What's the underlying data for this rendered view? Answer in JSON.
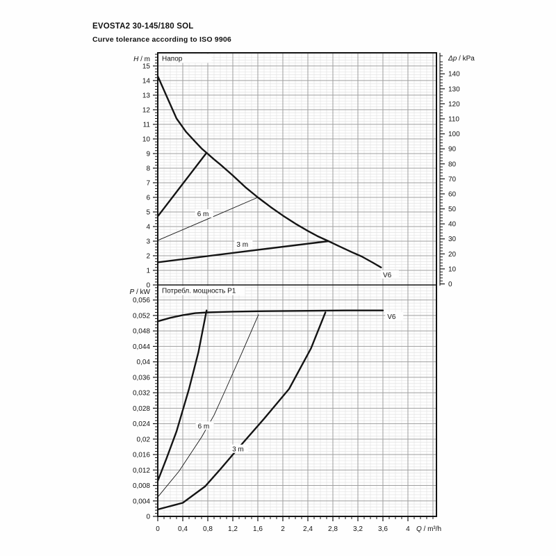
{
  "page": {
    "title": "EVOSTA2 30-145/180 SOL",
    "subtitle": "Curve tolerance according to ISO 9906"
  },
  "colors": {
    "curve": "#141414",
    "frame": "#141414",
    "grid_major": "#9e9e9e",
    "grid_minor": "#e4e4e4",
    "text": "#111111",
    "background": "#fefefe"
  },
  "chart_data": [
    {
      "id": "head",
      "type": "line",
      "title": "Напор",
      "y_axis_left": {
        "title": "H / m",
        "tick_labels": [
          "0",
          "1",
          "2",
          "3",
          "4",
          "5",
          "6",
          "7",
          "8",
          "9",
          "10",
          "11",
          "12",
          "13",
          "14",
          "15"
        ],
        "tick_values": [
          0,
          1,
          2,
          3,
          4,
          5,
          6,
          7,
          8,
          9,
          10,
          11,
          12,
          13,
          14,
          15
        ],
        "minor_step": 0.2,
        "range": [
          0,
          15.9
        ]
      },
      "y_axis_right": {
        "title": "Δp / kPa",
        "tick_labels": [
          "0",
          "10",
          "20",
          "30",
          "40",
          "50",
          "60",
          "70",
          "80",
          "90",
          "100",
          "110",
          "120",
          "130",
          "140"
        ],
        "tick_values": [
          0,
          10,
          20,
          30,
          40,
          50,
          60,
          70,
          80,
          90,
          100,
          110,
          120,
          130,
          140
        ],
        "minor_step": 2,
        "range": [
          0,
          154
        ]
      },
      "x_range": [
        0,
        4.456
      ],
      "grid": true,
      "series": [
        {
          "name": "max-speed-head-curve",
          "label": "V6",
          "label_at": [
            3.6,
            0.72
          ],
          "weight": "thick",
          "points": [
            [
              0,
              14.3
            ],
            [
              0.15,
              12.85
            ],
            [
              0.3,
              11.4
            ],
            [
              0.45,
              10.5
            ],
            [
              0.6,
              9.8
            ],
            [
              0.7,
              9.35
            ],
            [
              0.78,
              9.05
            ],
            [
              0.9,
              8.6
            ],
            [
              1.0,
              8.25
            ],
            [
              1.2,
              7.5
            ],
            [
              1.4,
              6.7
            ],
            [
              1.6,
              6.0
            ],
            [
              1.8,
              5.35
            ],
            [
              2.0,
              4.75
            ],
            [
              2.2,
              4.2
            ],
            [
              2.4,
              3.7
            ],
            [
              2.55,
              3.35
            ],
            [
              2.73,
              3.0
            ],
            [
              2.9,
              2.65
            ],
            [
              3.1,
              2.25
            ],
            [
              3.26,
              1.95
            ],
            [
              3.45,
              1.5
            ],
            [
              3.57,
              1.2
            ]
          ]
        },
        {
          "name": "proportional-pressure-max-line",
          "label": "",
          "weight": "thick",
          "points": [
            [
              0,
              4.7
            ],
            [
              0.78,
              9.05
            ]
          ]
        },
        {
          "name": "setpoint-6m-head-line",
          "label": "6 m",
          "label_at": [
            0.63,
            4.9
          ],
          "weight": "thin",
          "points": [
            [
              0,
              3.05
            ],
            [
              0.8,
              4.52
            ],
            [
              1.6,
              6.0
            ]
          ]
        },
        {
          "name": "setpoint-3m-head-line",
          "label": "3 m",
          "label_at": [
            1.26,
            2.8
          ],
          "weight": "thick",
          "points": [
            [
              0,
              1.55
            ],
            [
              1.4,
              2.3
            ],
            [
              2.73,
              3.0
            ]
          ]
        }
      ]
    },
    {
      "id": "power",
      "type": "line",
      "title": "Потребл. мощность P1",
      "y_axis_left": {
        "title": "P / kW",
        "tick_labels": [
          "0",
          "0,004",
          "0,008",
          "0,012",
          "0,016",
          "0,02",
          "0,024",
          "0,028",
          "0,032",
          "0,036",
          "0,04",
          "0,044",
          "0,048",
          "0,052",
          "0,056"
        ],
        "tick_values": [
          0,
          0.004,
          0.008,
          0.012,
          0.016,
          0.02,
          0.024,
          0.028,
          0.032,
          0.036,
          0.04,
          0.044,
          0.048,
          0.052,
          0.056
        ],
        "minor_step": 0.0008,
        "range": [
          0,
          0.0599
        ]
      },
      "x_axis": {
        "title": "Q / m³/h",
        "tick_labels": [
          "0",
          "0,4",
          "0,8",
          "1,2",
          "1,6",
          "2",
          "2,4",
          "2,8",
          "3,2",
          "3,6",
          "4"
        ],
        "tick_values": [
          0,
          0.4,
          0.8,
          1.2,
          1.6,
          2,
          2.4,
          2.8,
          3.2,
          3.6,
          4
        ],
        "minor_step": 0.1,
        "range": [
          0,
          4.456
        ]
      },
      "grid": true,
      "series": [
        {
          "name": "max-speed-power-curve",
          "label": "V6",
          "label_at": [
            3.67,
            0.0518
          ],
          "weight": "thick",
          "points": [
            [
              0,
              0.0505
            ],
            [
              0.2,
              0.0514
            ],
            [
              0.4,
              0.0521
            ],
            [
              0.6,
              0.0526
            ],
            [
              0.8,
              0.0528
            ],
            [
              1.2,
              0.053
            ],
            [
              1.6,
              0.0531
            ],
            [
              2.4,
              0.0532
            ],
            [
              3.0,
              0.0533
            ],
            [
              3.6,
              0.0533
            ]
          ]
        },
        {
          "name": "proportional-pressure-max-power-curve",
          "label": "",
          "weight": "thick",
          "points": [
            [
              0,
              0.0092
            ],
            [
              0.14,
              0.015
            ],
            [
              0.3,
              0.022
            ],
            [
              0.5,
              0.033
            ],
            [
              0.65,
              0.0425
            ],
            [
              0.78,
              0.0533
            ]
          ]
        },
        {
          "name": "setpoint-6m-power-curve",
          "label": "6 m",
          "label_at": [
            0.64,
            0.0235
          ],
          "weight": "thin",
          "points": [
            [
              0,
              0.005
            ],
            [
              0.34,
              0.0117
            ],
            [
              0.7,
              0.0205
            ],
            [
              0.9,
              0.0262
            ],
            [
              1.09,
              0.033
            ],
            [
              1.35,
              0.0425
            ],
            [
              1.61,
              0.0522
            ]
          ]
        },
        {
          "name": "setpoint-3m-power-curve",
          "label": "3 m",
          "label_at": [
            1.19,
            0.0175
          ],
          "weight": "thick",
          "points": [
            [
              0,
              0.0018
            ],
            [
              0.4,
              0.0035
            ],
            [
              0.76,
              0.0078
            ],
            [
              1.0,
              0.0122
            ],
            [
              1.29,
              0.0177
            ],
            [
              1.7,
              0.0253
            ],
            [
              2.1,
              0.033
            ],
            [
              2.45,
              0.0435
            ],
            [
              2.68,
              0.0528
            ]
          ]
        }
      ]
    }
  ]
}
